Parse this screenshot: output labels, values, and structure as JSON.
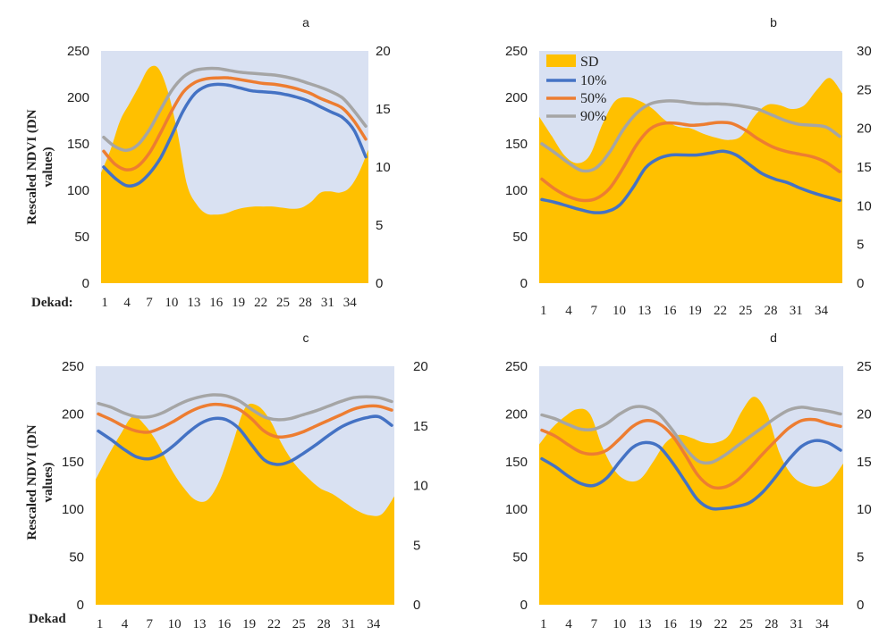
{
  "colors": {
    "plot_bg": "#d9e1f2",
    "sd": "#ffc000",
    "p10": "#4472c4",
    "p50": "#ed7d31",
    "p90": "#a5a5a5"
  },
  "legend": {
    "sd": "SD",
    "p10": "10%",
    "p50": "50%",
    "p90": "90%"
  },
  "chart_data": [
    {
      "type": "line",
      "title": "a",
      "ylabel": "Rescaled NDVI (DN values)",
      "xlabel": "Dekad:",
      "ylim": [
        0,
        250
      ],
      "y2lim": [
        0,
        20
      ],
      "yticks": [
        "0",
        "50",
        "100",
        "150",
        "200",
        "250"
      ],
      "y2ticks": [
        "0",
        "5",
        "10",
        "15",
        "20"
      ],
      "xticks": [
        "1",
        "4",
        "7",
        "10",
        "13",
        "16",
        "19",
        "22",
        "25",
        "28",
        "31",
        "34"
      ],
      "area": {
        "name": "SD",
        "axis": "secondary",
        "values": [
          9.5,
          11.5,
          14,
          15.5,
          17,
          18.5,
          18.5,
          16.5,
          13,
          8.5,
          6.8,
          6,
          5.9,
          6,
          6.3,
          6.5,
          6.6,
          6.6,
          6.6,
          6.5,
          6.4,
          6.5,
          7,
          7.8,
          7.9,
          7.8,
          8.2,
          9.5,
          11.5
        ]
      },
      "series": [
        {
          "name": "10%",
          "values": [
            125,
            113,
            105,
            107,
            118,
            135,
            160,
            186,
            204,
            212,
            214,
            213,
            210,
            207,
            206,
            205,
            203,
            200,
            196,
            190,
            184,
            178,
            164,
            136
          ]
        },
        {
          "name": "50%",
          "values": [
            142,
            128,
            122,
            126,
            140,
            162,
            186,
            206,
            216,
            220,
            221,
            221,
            219,
            217,
            215,
            214,
            212,
            209,
            205,
            199,
            194,
            188,
            174,
            155
          ]
        },
        {
          "name": "90%",
          "values": [
            157,
            147,
            143,
            149,
            165,
            187,
            208,
            222,
            229,
            231,
            231,
            229,
            227,
            226,
            225,
            224,
            222,
            219,
            215,
            211,
            206,
            199,
            185,
            169
          ]
        }
      ]
    },
    {
      "type": "line",
      "title": "b",
      "ylabel": "",
      "xlabel": "",
      "ylim": [
        0,
        250
      ],
      "y2lim": [
        0,
        30
      ],
      "yticks": [
        "0",
        "50",
        "100",
        "150",
        "200",
        "250"
      ],
      "y2ticks": [
        "0",
        "5",
        "10",
        "15",
        "20",
        "25",
        "30"
      ],
      "xticks": [
        "1",
        "4",
        "7",
        "10",
        "13",
        "16",
        "19",
        "22",
        "25",
        "28",
        "31",
        "34"
      ],
      "area": {
        "name": "SD",
        "axis": "secondary",
        "values": [
          21.5,
          19,
          16.5,
          15.5,
          16.5,
          20.5,
          23.5,
          24,
          23.5,
          22.5,
          21,
          20.2,
          20,
          19.3,
          18.8,
          18.5,
          19,
          21.5,
          23,
          23,
          22.5,
          23,
          25,
          26.5,
          24.5
        ]
      },
      "series": [
        {
          "name": "10%",
          "values": [
            90,
            87,
            83,
            79,
            76,
            77,
            84,
            102,
            124,
            134,
            138,
            138,
            138,
            140,
            142,
            138,
            128,
            118,
            112,
            108,
            102,
            97,
            93,
            89
          ]
        },
        {
          "name": "50%",
          "values": [
            112,
            101,
            93,
            89,
            91,
            102,
            124,
            149,
            166,
            172,
            172,
            170,
            171,
            173,
            172,
            165,
            155,
            147,
            142,
            139,
            136,
            130,
            120
          ]
        },
        {
          "name": "90%",
          "values": [
            150,
            140,
            129,
            121,
            124,
            141,
            165,
            183,
            193,
            196,
            196,
            194,
            193,
            193,
            192,
            190,
            187,
            181,
            175,
            171,
            170,
            168,
            158
          ]
        }
      ]
    },
    {
      "type": "line",
      "title": "c",
      "ylabel": "Rescaled NDVI (DN values)",
      "xlabel": "Dekad",
      "ylim": [
        0,
        250
      ],
      "y2lim": [
        0,
        20
      ],
      "yticks": [
        "0",
        "50",
        "100",
        "150",
        "200",
        "250"
      ],
      "y2ticks": [
        "0",
        "5",
        "10",
        "15",
        "20"
      ],
      "xticks": [
        "1",
        "4",
        "7",
        "10",
        "13",
        "16",
        "19",
        "22",
        "25",
        "28",
        "31",
        "34"
      ],
      "area": {
        "name": "SD",
        "axis": "secondary",
        "values": [
          10.5,
          12.5,
          14.3,
          15.8,
          15,
          13.5,
          11.5,
          9.9,
          8.8,
          8.8,
          10.5,
          13.5,
          16.5,
          16.7,
          15.5,
          13.4,
          11.8,
          10.7,
          9.8,
          9.3,
          8.6,
          7.9,
          7.5,
          7.6,
          9.1
        ]
      },
      "series": [
        {
          "name": "10%",
          "values": [
            182,
            173,
            163,
            155,
            153,
            158,
            168,
            180,
            190,
            195,
            194,
            185,
            168,
            152,
            147,
            150,
            158,
            167,
            177,
            186,
            192,
            196,
            197,
            188
          ]
        },
        {
          "name": "50%",
          "values": [
            200,
            194,
            187,
            182,
            181,
            186,
            193,
            201,
            207,
            210,
            209,
            205,
            195,
            182,
            176,
            177,
            181,
            187,
            193,
            199,
            205,
            208,
            208,
            204
          ]
        },
        {
          "name": "90%",
          "values": [
            211,
            207,
            201,
            197,
            197,
            201,
            208,
            214,
            218,
            220,
            219,
            214,
            205,
            197,
            194,
            195,
            199,
            203,
            208,
            213,
            217,
            218,
            217,
            213
          ]
        }
      ]
    },
    {
      "type": "line",
      "title": "d",
      "ylabel": "",
      "xlabel": "",
      "ylim": [
        0,
        250
      ],
      "y2lim": [
        0,
        25
      ],
      "yticks": [
        "0",
        "50",
        "100",
        "150",
        "200",
        "250"
      ],
      "y2ticks": [
        "0",
        "5",
        "10",
        "15",
        "20",
        "25"
      ],
      "xticks": [
        "1",
        "4",
        "7",
        "10",
        "13",
        "16",
        "19",
        "22",
        "25",
        "28",
        "31",
        "34"
      ],
      "area": {
        "name": "SD",
        "axis": "secondary",
        "values": [
          16.8,
          18.5,
          19.7,
          20.5,
          20,
          16.5,
          14,
          13,
          13.2,
          15,
          17,
          17.8,
          17.5,
          17,
          17,
          17.8,
          20.3,
          21.8,
          20,
          15.8,
          13.5,
          12.6,
          12.4,
          13,
          14.8
        ]
      },
      "series": [
        {
          "name": "10%",
          "values": [
            153,
            145,
            135,
            127,
            125,
            133,
            150,
            165,
            170,
            166,
            150,
            130,
            110,
            101,
            101,
            103,
            107,
            118,
            134,
            152,
            166,
            172,
            170,
            162
          ]
        },
        {
          "name": "50%",
          "values": [
            183,
            177,
            168,
            160,
            158,
            162,
            174,
            187,
            193,
            190,
            178,
            158,
            136,
            124,
            123,
            130,
            143,
            158,
            172,
            185,
            193,
            194,
            190,
            187
          ]
        },
        {
          "name": "90%",
          "values": [
            199,
            195,
            189,
            184,
            184,
            190,
            200,
            207,
            207,
            200,
            184,
            165,
            151,
            149,
            156,
            166,
            176,
            186,
            196,
            204,
            207,
            205,
            203,
            200
          ]
        }
      ]
    }
  ]
}
